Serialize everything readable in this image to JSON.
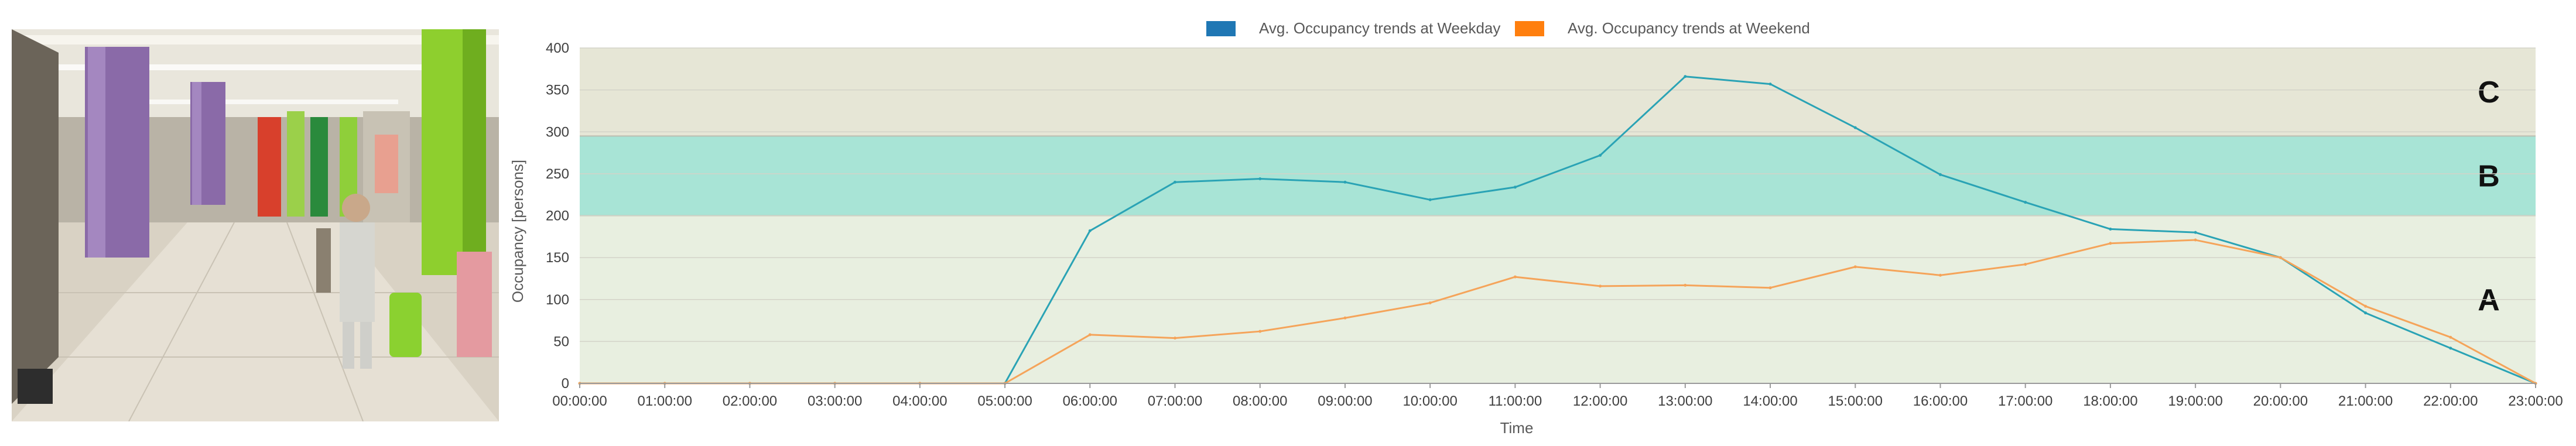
{
  "photo": {
    "name": "station-concourse-photo"
  },
  "chart_data": {
    "type": "line",
    "title": "",
    "xlabel": "Time",
    "ylabel": "Occupancy [persons]",
    "ylim": [
      0,
      400
    ],
    "yticks": [
      "0",
      "50",
      "100",
      "150",
      "200",
      "250",
      "300",
      "350",
      "400"
    ],
    "categories": [
      "00:00:00",
      "01:00:00",
      "02:00:00",
      "03:00:00",
      "04:00:00",
      "05:00:00",
      "06:00:00",
      "07:00:00",
      "08:00:00",
      "09:00:00",
      "10:00:00",
      "11:00:00",
      "12:00:00",
      "13:00:00",
      "14:00:00",
      "15:00:00",
      "16:00:00",
      "17:00:00",
      "18:00:00",
      "19:00:00",
      "20:00:00",
      "21:00:00",
      "22:00:00",
      "23:00:00"
    ],
    "series": [
      {
        "name": "Avg. Occupancy trends at Weekday",
        "color": "#2aa3b5",
        "legend_color": "#1f77b4",
        "values": [
          0,
          0,
          0,
          0,
          0,
          0,
          182,
          240,
          244,
          240,
          219,
          234,
          272,
          366,
          357,
          305,
          249,
          216,
          184,
          180,
          150,
          84,
          42,
          0
        ]
      },
      {
        "name": "Avg. Occupancy trends at Weekend",
        "color": "#f5a45a",
        "legend_color": "#ff7f0e",
        "values": [
          0,
          0,
          0,
          0,
          0,
          0,
          58,
          54,
          62,
          78,
          96,
          127,
          116,
          117,
          114,
          139,
          129,
          142,
          167,
          171,
          150,
          92,
          55,
          0
        ]
      }
    ],
    "zones": [
      {
        "label": "A",
        "from": 0,
        "to": 200,
        "color": "#e8efe0"
      },
      {
        "label": "B",
        "from": 200,
        "to": 295,
        "color": "#a8e4d6"
      },
      {
        "label": "C",
        "from": 295,
        "to": 400,
        "color": "#e6e6d6"
      }
    ],
    "legend_position": "top-center",
    "grid": true
  }
}
